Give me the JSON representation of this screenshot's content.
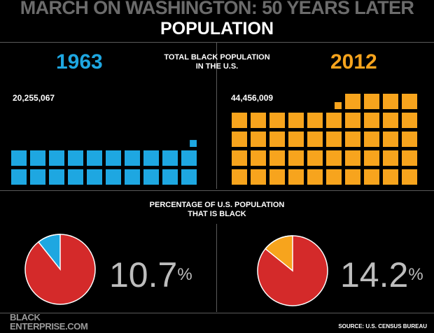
{
  "header": {
    "title": "MARCH ON WASHINGTON: 50 YEARS LATER",
    "section": "POPULATION"
  },
  "colors": {
    "y1963": "#1ea7e1",
    "y2012": "#f7a41d",
    "pie_main": "#d42a2a",
    "background": "#000000"
  },
  "population": {
    "caption_line1": "TOTAL BLACK POPULATION",
    "caption_line2": "IN THE U.S."
  },
  "percentage": {
    "caption_line1": "PERCENTAGE OF U.S. POPULATION",
    "caption_line2": "THAT IS BLACK"
  },
  "chart_data": [
    {
      "type": "pictogram",
      "title": "TOTAL BLACK POPULATION IN THE U.S.",
      "year": "1963",
      "value": 20255067,
      "label": "20,255,067",
      "unit_value": 1000000,
      "color": "#1ea7e1"
    },
    {
      "type": "pictogram",
      "title": "TOTAL BLACK POPULATION IN THE U.S.",
      "year": "2012",
      "value": 44456009,
      "label": "44,456,009",
      "unit_value": 1000000,
      "color": "#f7a41d"
    },
    {
      "type": "pie",
      "title": "PERCENTAGE OF U.S. POPULATION THAT IS BLACK",
      "year": "1963",
      "value": 10.7,
      "value_label": "10.7",
      "unit": "%",
      "highlight_color": "#1ea7e1"
    },
    {
      "type": "pie",
      "title": "PERCENTAGE OF U.S. POPULATION THAT IS BLACK",
      "year": "2012",
      "value": 14.2,
      "value_label": "14.2",
      "unit": "%",
      "highlight_color": "#f7a41d"
    }
  ],
  "footer": {
    "logo_line1": "BLACK",
    "logo_line2": "ENTERPRISE.COM",
    "source": "SOURCE: U.S. CENSUS BUREAU"
  }
}
